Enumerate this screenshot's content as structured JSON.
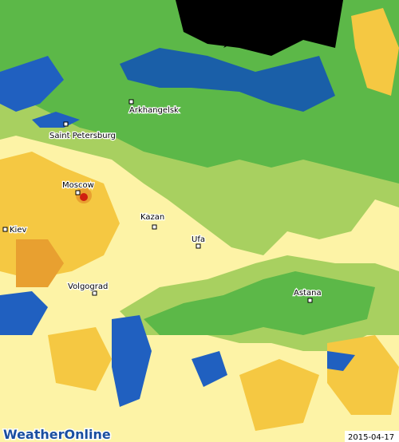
{
  "cities": [
    {
      "label": "Arkhangelsk"
    },
    {
      "label": "Saint Petersburg"
    },
    {
      "label": "Moscow"
    },
    {
      "label": "Kazan"
    },
    {
      "label": "Kiev"
    },
    {
      "label": "Ufa"
    },
    {
      "label": "Volgograd"
    },
    {
      "label": "Astana"
    }
  ],
  "logo": "WeatherOnline",
  "date": "2015-04-17"
}
